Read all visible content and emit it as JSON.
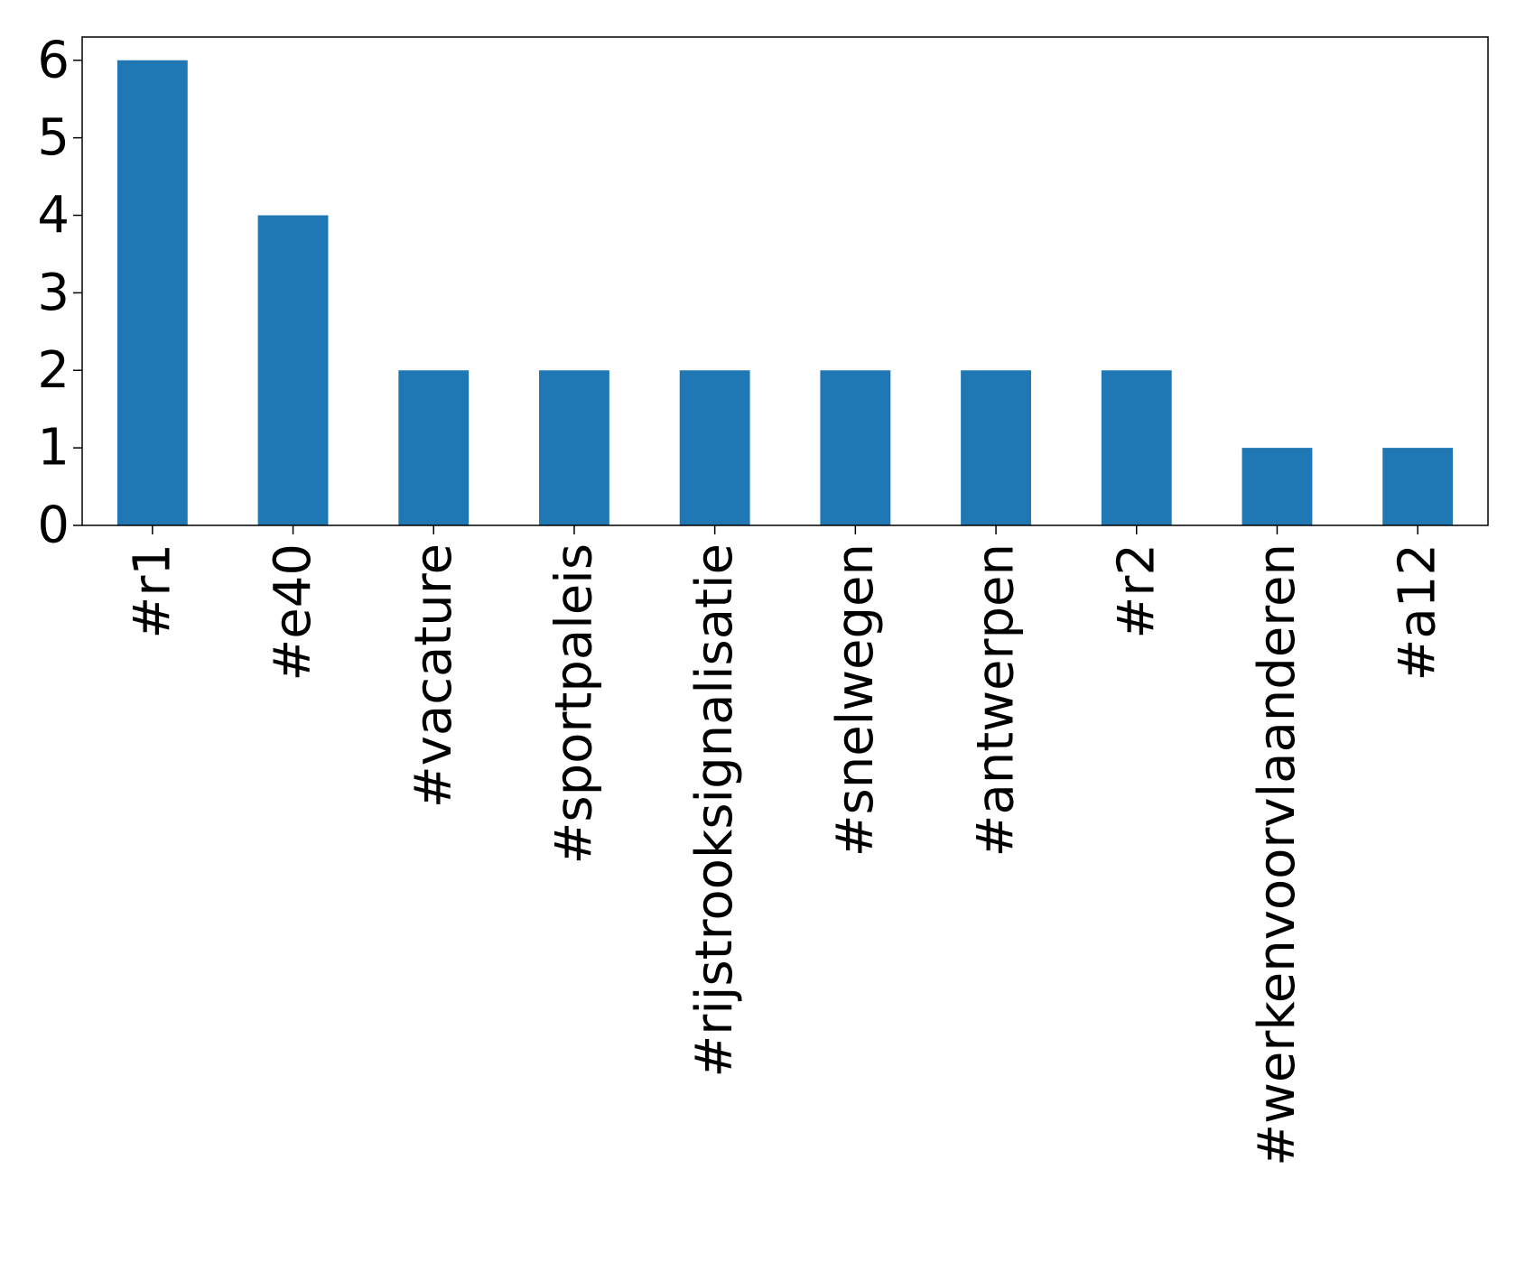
{
  "chart_data": {
    "type": "bar",
    "title": "",
    "xlabel": "",
    "ylabel": "",
    "categories": [
      "#r1",
      "#e40",
      "#vacature",
      "#sportpaleis",
      "#rijstrooksignalisatie",
      "#snelwegen",
      "#antwerpen",
      "#r2",
      "#werkenvoorvlaanderen",
      "#a12"
    ],
    "values": [
      6,
      4,
      2,
      2,
      2,
      2,
      2,
      2,
      1,
      1
    ],
    "ylim": [
      0,
      6.3
    ],
    "yticks": [
      0,
      1,
      2,
      3,
      4,
      5,
      6
    ],
    "grid": false,
    "legend": "none",
    "colors": {
      "bar": "#1f77b4"
    }
  }
}
